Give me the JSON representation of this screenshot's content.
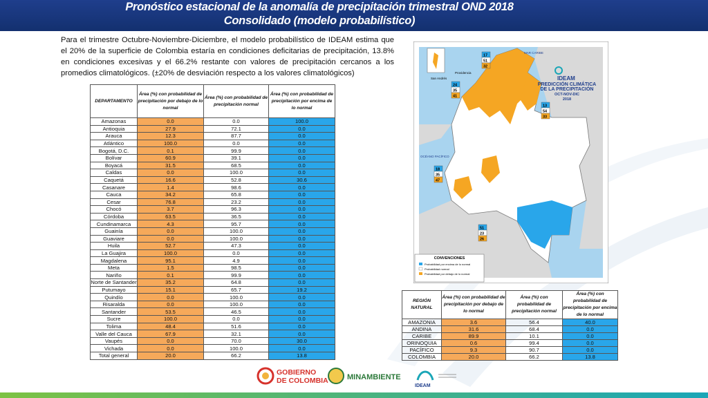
{
  "header": {
    "title": [
      "Pronóstico estacional de la anomalía de precipitación trimestral OND 2018",
      "Consolidado (modelo probabilístico)"
    ]
  },
  "intro": "Para el trimestre Octubre-Noviembre-Diciembre, el modelo probabilístico de IDEAM estima que el 20% de la superficie de Colombia estaría en condiciones deficitarias de precipitación, 13.8% en condiciones excesivas y el 66.2% restante con valores de precipitación cercanos a los promedios climatológicos. (±20% de desviación respecto a los valores climatológicos)",
  "table": {
    "columns": [
      "DEPARTAMENTO",
      "Área (%) con probabilidad de precipitación por debajo de lo normal",
      "Área (%) con probabilidad de precipitación normal",
      "Área (%) con probabilidad de precipitación por encima de lo normal"
    ],
    "rows": [
      [
        "Amazonas",
        "0.0",
        "0.0",
        "100.0"
      ],
      [
        "Antioquia",
        "27.9",
        "72.1",
        "0.0"
      ],
      [
        "Arauca",
        "12.3",
        "87.7",
        "0.0"
      ],
      [
        "Atlántico",
        "100.0",
        "0.0",
        "0.0"
      ],
      [
        "Bogotá, D.C.",
        "0.1",
        "99.9",
        "0.0"
      ],
      [
        "Bolívar",
        "60.9",
        "39.1",
        "0.0"
      ],
      [
        "Boyacá",
        "31.5",
        "68.5",
        "0.0"
      ],
      [
        "Caldas",
        "0.0",
        "100.0",
        "0.0"
      ],
      [
        "Caquetá",
        "16.6",
        "52.8",
        "30.6"
      ],
      [
        "Casanare",
        "1.4",
        "98.6",
        "0.0"
      ],
      [
        "Cauca",
        "34.2",
        "65.8",
        "0.0"
      ],
      [
        "Cesar",
        "76.8",
        "23.2",
        "0.0"
      ],
      [
        "Chocó",
        "3.7",
        "96.3",
        "0.0"
      ],
      [
        "Córdoba",
        "63.5",
        "36.5",
        "0.0"
      ],
      [
        "Cundinamarca",
        "4.3",
        "95.7",
        "0.0"
      ],
      [
        "Guainía",
        "0.0",
        "100.0",
        "0.0"
      ],
      [
        "Guaviare",
        "0.0",
        "100.0",
        "0.0"
      ],
      [
        "Huila",
        "52.7",
        "47.3",
        "0.0"
      ],
      [
        "La Guajira",
        "100.0",
        "0.0",
        "0.0"
      ],
      [
        "Magdalena",
        "95.1",
        "4.9",
        "0.0"
      ],
      [
        "Meta",
        "1.5",
        "98.5",
        "0.0"
      ],
      [
        "Nariño",
        "0.1",
        "99.9",
        "0.0"
      ],
      [
        "Norte de Santander",
        "35.2",
        "64.8",
        "0.0"
      ],
      [
        "Putumayo",
        "15.1",
        "65.7",
        "19.2"
      ],
      [
        "Quindío",
        "0.0",
        "100.0",
        "0.0"
      ],
      [
        "Risaralda",
        "0.0",
        "100.0",
        "0.0"
      ],
      [
        "Santander",
        "53.5",
        "46.5",
        "0.0"
      ],
      [
        "Sucre",
        "100.0",
        "0.0",
        "0.0"
      ],
      [
        "Tolima",
        "48.4",
        "51.6",
        "0.0"
      ],
      [
        "Valle del Cauca",
        "67.9",
        "32.1",
        "0.0"
      ],
      [
        "Vaupés",
        "0.0",
        "70.0",
        "30.0"
      ],
      [
        "Vichada",
        "0.0",
        "100.0",
        "0.0"
      ],
      [
        "Total general",
        "20.0",
        "66.2",
        "13.8"
      ]
    ]
  },
  "regions": {
    "columns": [
      "REGIÓN NATURAL",
      "Área (%) con probabilidad de precipitación por debajo de lo normal",
      "Área (%) con probabilidad de precipitación normal",
      "Área (%) con probabilidad de precipitación por encima de lo normal"
    ],
    "rows": [
      [
        "AMAZONIA",
        "3.6",
        "56.4",
        "40.0"
      ],
      [
        "ANDINA",
        "31.6",
        "68.4",
        "0.0"
      ],
      [
        "CARIBE",
        "89.9",
        "10.1",
        "0.0"
      ],
      [
        "ORINOQUIA",
        "0.6",
        "99.4",
        "0.0"
      ],
      [
        "PACÍFICO",
        "9.3",
        "90.7",
        "0.0"
      ],
      [
        "COLOMBIA",
        "20.0",
        "66.2",
        "13.8"
      ]
    ]
  },
  "map": {
    "brand": "IDEAM",
    "title": [
      "PREDICCIÓN CLIMÁTICA",
      "DE LA PRECIPITACIÓN",
      "OCT-NOV-DIC",
      "2018"
    ],
    "places": [
      "San Andrés",
      "Providencia",
      "MAR CARIBE",
      "OCÉANO PACÍFICO"
    ],
    "boxes": [
      [
        "17",
        "51",
        "32"
      ],
      [
        "24",
        "35",
        "41"
      ],
      [
        "13",
        "54",
        "33"
      ],
      [
        "18",
        "35",
        "47"
      ],
      [
        "51",
        "23",
        "26"
      ]
    ],
    "legend_title": "CONVENCIONES",
    "legend": [
      "Probabilidad por encima de lo normal",
      "Probabilidad normal",
      "Probabilidad por debajo de lo normal"
    ]
  },
  "footer": {
    "logos": [
      "GOBIERNO",
      "DE COLOMBIA",
      "MINAMBIENTE",
      "IDEAM"
    ]
  }
}
